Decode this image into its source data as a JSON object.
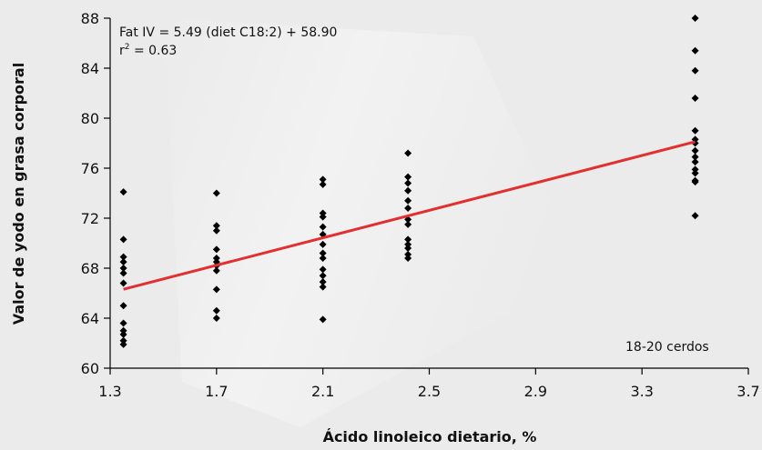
{
  "chart_data": {
    "type": "scatter",
    "xlabel": "Ácido linoleico dietario, %",
    "ylabel": "Valor de yodo en grasa corporal",
    "xlim": [
      1.3,
      3.7
    ],
    "ylim": [
      60,
      88
    ],
    "xticks": [
      "1.3",
      "1.7",
      "2.1",
      "2.5",
      "2.9",
      "3.3",
      "3.7"
    ],
    "yticks": [
      "60",
      "64",
      "68",
      "72",
      "76",
      "80",
      "84",
      "88"
    ],
    "equation": "Fat IV = 5.49 (diet C18:2) + 58.90",
    "r2_prefix": "r",
    "r2_sup": "2",
    "r2_value": " = 0.63",
    "note": "18-20 cerdos",
    "regression": {
      "slope": 5.49,
      "intercept": 58.9,
      "x_range": [
        1.35,
        3.5
      ],
      "color": "#e03030"
    },
    "point_color": "#000000",
    "points": [
      [
        1.35,
        74.1
      ],
      [
        1.35,
        70.3
      ],
      [
        1.35,
        68.9
      ],
      [
        1.35,
        68.5
      ],
      [
        1.35,
        68.0
      ],
      [
        1.35,
        67.6
      ],
      [
        1.35,
        66.8
      ],
      [
        1.35,
        65.0
      ],
      [
        1.35,
        63.6
      ],
      [
        1.35,
        63.0
      ],
      [
        1.35,
        62.7
      ],
      [
        1.35,
        62.2
      ],
      [
        1.35,
        61.9
      ],
      [
        1.7,
        74.0
      ],
      [
        1.7,
        71.4
      ],
      [
        1.7,
        71.0
      ],
      [
        1.7,
        69.5
      ],
      [
        1.7,
        68.8
      ],
      [
        1.7,
        68.5
      ],
      [
        1.7,
        68.2
      ],
      [
        1.7,
        67.8
      ],
      [
        1.7,
        66.3
      ],
      [
        1.7,
        64.6
      ],
      [
        1.7,
        64.0
      ],
      [
        2.1,
        75.1
      ],
      [
        2.1,
        74.7
      ],
      [
        2.1,
        72.4
      ],
      [
        2.1,
        72.1
      ],
      [
        2.1,
        71.3
      ],
      [
        2.1,
        70.7
      ],
      [
        2.1,
        69.9
      ],
      [
        2.1,
        69.2
      ],
      [
        2.1,
        68.8
      ],
      [
        2.1,
        67.9
      ],
      [
        2.1,
        67.4
      ],
      [
        2.1,
        66.9
      ],
      [
        2.1,
        66.5
      ],
      [
        2.1,
        63.9
      ],
      [
        2.42,
        77.2
      ],
      [
        2.42,
        75.3
      ],
      [
        2.42,
        74.8
      ],
      [
        2.42,
        74.2
      ],
      [
        2.42,
        73.4
      ],
      [
        2.42,
        72.8
      ],
      [
        2.42,
        71.9
      ],
      [
        2.42,
        71.5
      ],
      [
        2.42,
        70.3
      ],
      [
        2.42,
        69.9
      ],
      [
        2.42,
        69.6
      ],
      [
        2.42,
        69.1
      ],
      [
        2.42,
        68.8
      ],
      [
        3.5,
        88.0
      ],
      [
        3.5,
        85.4
      ],
      [
        3.5,
        83.8
      ],
      [
        3.5,
        81.6
      ],
      [
        3.5,
        79.0
      ],
      [
        3.5,
        78.3
      ],
      [
        3.5,
        78.0
      ],
      [
        3.5,
        77.4
      ],
      [
        3.5,
        76.9
      ],
      [
        3.5,
        76.5
      ],
      [
        3.5,
        75.9
      ],
      [
        3.5,
        75.6
      ],
      [
        3.5,
        75.0
      ],
      [
        3.5,
        74.9
      ],
      [
        3.5,
        72.2
      ]
    ]
  }
}
